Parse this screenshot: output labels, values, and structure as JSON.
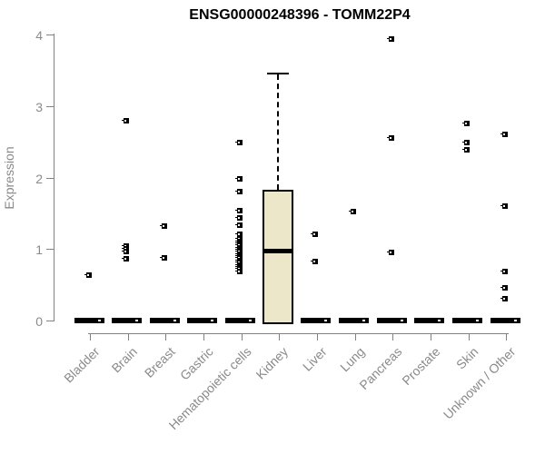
{
  "title": "ENSG00000248396 - TOMM22P4",
  "chart_data": {
    "type": "boxplot",
    "title": "ENSG00000248396 - TOMM22P4",
    "ylabel": "Expression",
    "xlabel": "",
    "ylim": [
      0,
      4
    ],
    "yticks": [
      0,
      1,
      2,
      3,
      4
    ],
    "grid": false,
    "legend": "none",
    "categories": [
      "Bladder",
      "Brain",
      "Breast",
      "Gastric",
      "Hematopoietic cells",
      "Kidney",
      "Liver",
      "Lung",
      "Pancreas",
      "Prostate",
      "Skin",
      "Unknown / Other"
    ],
    "groups": [
      {
        "name": "Bladder",
        "box": {
          "q1": 0,
          "median": 0,
          "q3": 0
        },
        "points": [
          0.64
        ]
      },
      {
        "name": "Brain",
        "box": {
          "q1": 0,
          "median": 0,
          "q3": 0
        },
        "points": [
          2.8,
          1.04,
          1.0,
          0.97,
          0.86
        ]
      },
      {
        "name": "Breast",
        "box": {
          "q1": 0,
          "median": 0,
          "q3": 0
        },
        "points": [
          1.32,
          0.87
        ]
      },
      {
        "name": "Gastric",
        "box": {
          "q1": 0,
          "median": 0,
          "q3": 0
        },
        "points": []
      },
      {
        "name": "Hematopoietic cells",
        "box": {
          "q1": 0,
          "median": 0,
          "q3": 0
        },
        "points": [
          2.49,
          1.98,
          1.8,
          1.54,
          1.43,
          1.33,
          1.21,
          1.14,
          1.11,
          1.08,
          1.05,
          1.02,
          0.99,
          0.96,
          0.93,
          0.9,
          0.87,
          0.84,
          0.81,
          0.78,
          0.75,
          0.72,
          0.69
        ]
      },
      {
        "name": "Kidney",
        "box": {
          "q1": 0,
          "median": 0.98,
          "q3": 1.83,
          "whisker_high": 3.47
        },
        "points": []
      },
      {
        "name": "Liver",
        "box": {
          "q1": 0,
          "median": 0,
          "q3": 0
        },
        "points": [
          1.21,
          0.83
        ]
      },
      {
        "name": "Lung",
        "box": {
          "q1": 0,
          "median": 0,
          "q3": 0
        },
        "points": [
          1.53
        ]
      },
      {
        "name": "Pancreas",
        "box": {
          "q1": 0,
          "median": 0,
          "q3": 0
        },
        "points": [
          3.94,
          2.55,
          0.95
        ]
      },
      {
        "name": "Prostate",
        "box": {
          "q1": 0,
          "median": 0,
          "q3": 0
        },
        "points": []
      },
      {
        "name": "Skin",
        "box": {
          "q1": 0,
          "median": 0,
          "q3": 0
        },
        "points": [
          2.76,
          2.49,
          2.39
        ]
      },
      {
        "name": "Unknown / Other",
        "box": {
          "q1": 0,
          "median": 0,
          "q3": 0
        },
        "points": [
          2.6,
          1.6,
          0.69,
          0.46,
          0.3
        ]
      }
    ],
    "colors": {
      "box_fill": "#ece7c9",
      "box_border": "#000000",
      "point": "#000000",
      "axis": "#828282",
      "tick_label": "#8a8a8a",
      "title": "#000000",
      "background": "#ffffff"
    }
  }
}
